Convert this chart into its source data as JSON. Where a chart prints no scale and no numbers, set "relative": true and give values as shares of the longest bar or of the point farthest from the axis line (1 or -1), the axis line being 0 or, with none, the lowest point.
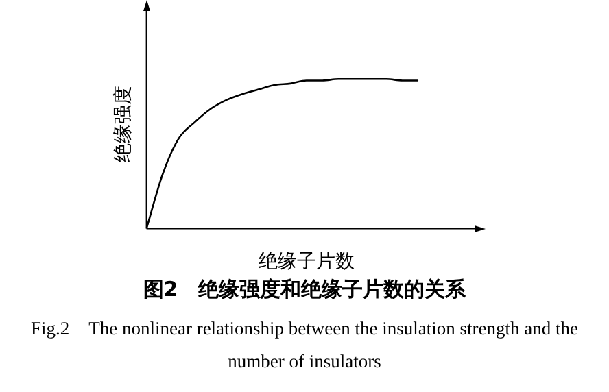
{
  "chart_data": {
    "type": "line",
    "title": "图2　绝缘强度和绝缘子片数的关系",
    "subtitle": "Fig.2　The nonlinear relationship between the insulation strength and the number of insulators",
    "xlabel": "绝缘子片数",
    "ylabel": "绝缘强度",
    "relative": true,
    "marker": "none",
    "grid": false,
    "legend": false,
    "categories": [
      null,
      null,
      null,
      null,
      null,
      null,
      null,
      null,
      null,
      null,
      null,
      null,
      null,
      null,
      null,
      null,
      null,
      null,
      null,
      null,
      null
    ],
    "series": [
      {
        "color": "#000000",
        "values": [
          0,
          0.36,
          0.6,
          0.71,
          0.8,
          0.86,
          0.9,
          0.93,
          0.96,
          0.97,
          0.99,
          0.99,
          1,
          1,
          1,
          1,
          0.99,
          0.99,
          null,
          null,
          null
        ]
      }
    ]
  }
}
